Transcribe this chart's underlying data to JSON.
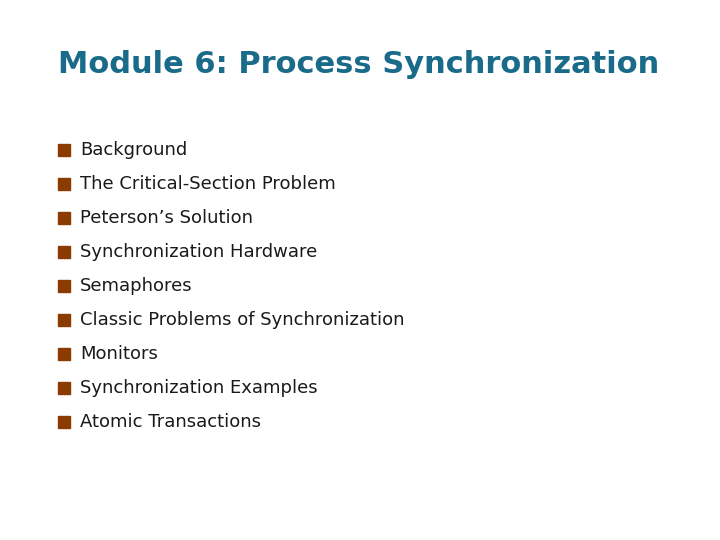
{
  "title": "Module 6: Process Synchronization",
  "title_color": "#1a6b8a",
  "title_fontsize": 22,
  "title_fontweight": "bold",
  "bullet_color": "#8B3a00",
  "text_color": "#1a1a1a",
  "text_fontsize": 13,
  "text_fontweight": "normal",
  "background_color": "#ffffff",
  "items": [
    "Background",
    "The Critical-Section Problem",
    "Peterson’s Solution",
    "Synchronization Hardware",
    "Semaphores",
    "Classic Problems of Synchronization",
    "Monitors",
    "Synchronization Examples",
    "Atomic Transactions"
  ]
}
